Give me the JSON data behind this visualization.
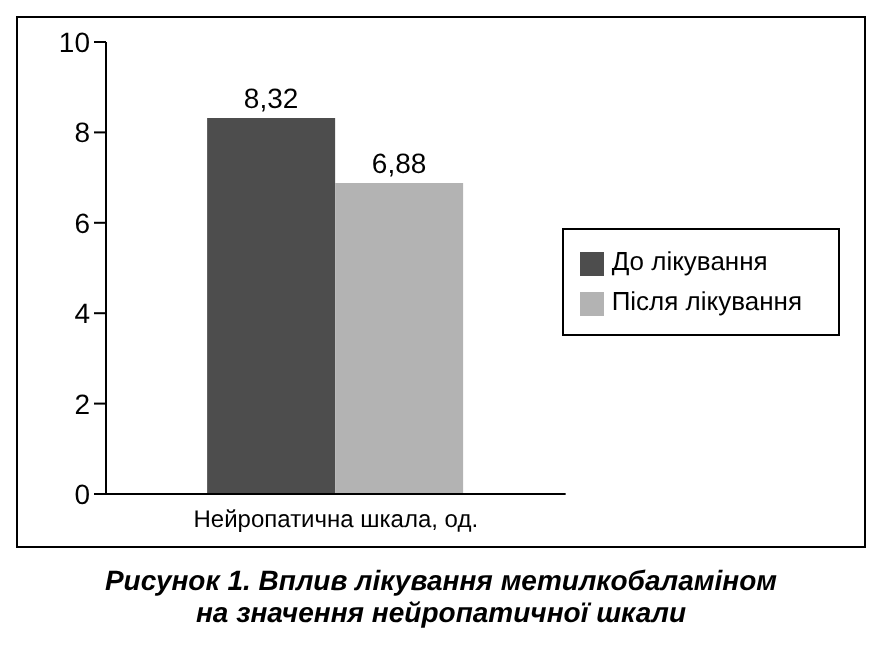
{
  "chart_data": {
    "type": "bar",
    "title": "Рисунок 1.  Вплив лікування метилкобаламіном\nна значення нейропатичної шкали",
    "categories": [
      "Нейропатична шкала, од."
    ],
    "series": [
      {
        "name": "До лікування",
        "color": "#4d4d4d",
        "values": [
          8.32
        ],
        "value_labels": [
          "8,32"
        ]
      },
      {
        "name": "Після лікування",
        "color": "#b3b3b3",
        "values": [
          6.88
        ],
        "value_labels": [
          "6,88"
        ]
      }
    ],
    "ylim": [
      0,
      10
    ],
    "yticks": [
      0,
      2,
      4,
      6,
      8,
      10
    ],
    "grid": false,
    "legend": "right"
  }
}
